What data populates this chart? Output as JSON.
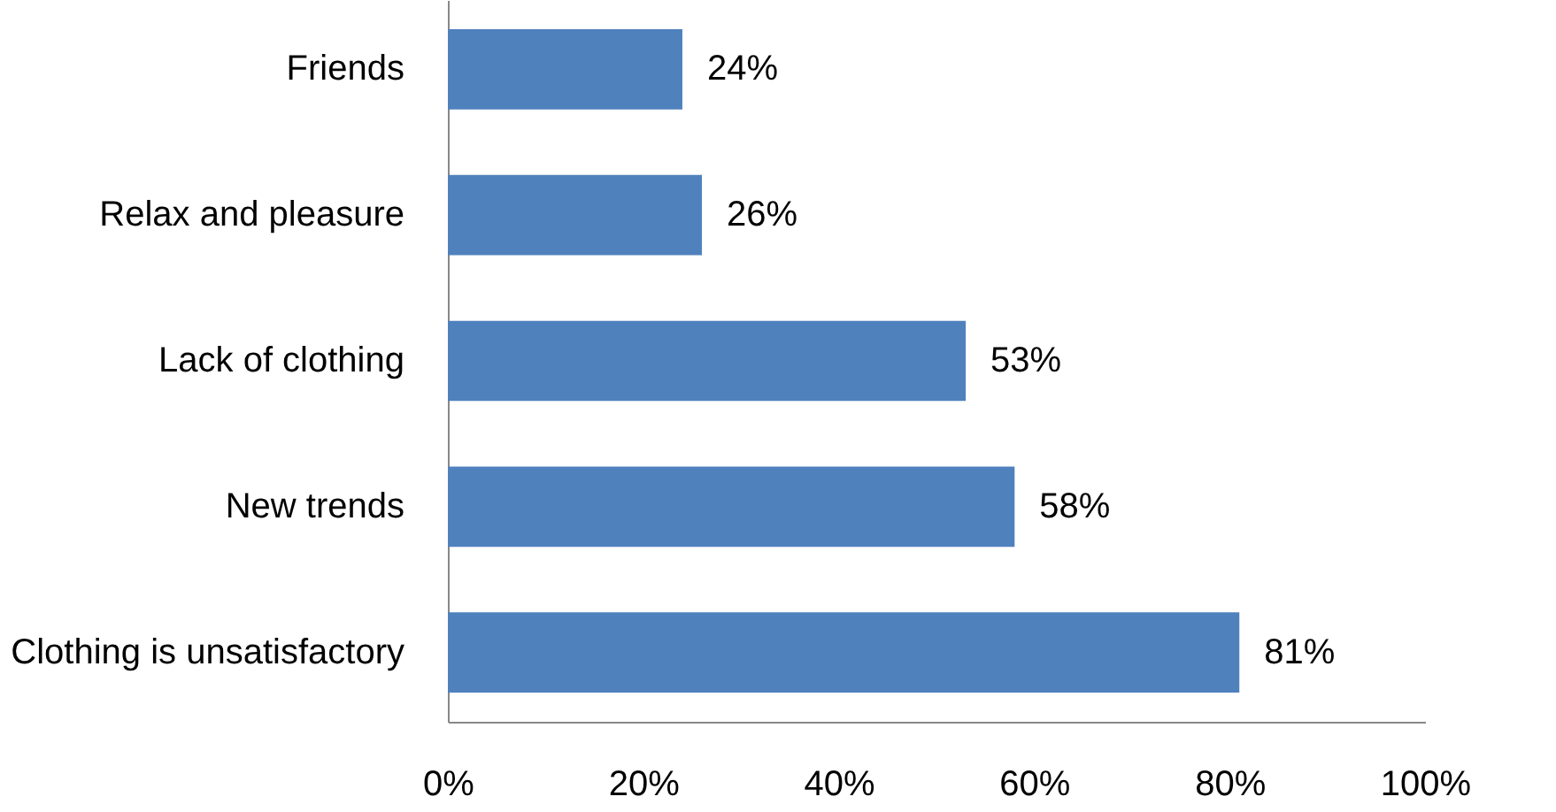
{
  "chart_data": {
    "type": "bar",
    "orientation": "horizontal",
    "categories": [
      "Friends",
      "Relax and pleasure",
      "Lack of clothing",
      "New trends",
      "Clothing is unsatisfactory"
    ],
    "values": [
      24,
      26,
      53,
      58,
      81
    ],
    "value_labels": [
      "24%",
      "26%",
      "53%",
      "58%",
      "81%"
    ],
    "color": "#4f81bd",
    "xlim": [
      0,
      100
    ],
    "xticks": [
      {
        "value": 0,
        "label": "0%"
      },
      {
        "value": 20,
        "label": "20%"
      },
      {
        "value": 40,
        "label": "40%"
      },
      {
        "value": 60,
        "label": "60%"
      },
      {
        "value": 80,
        "label": "80%"
      },
      {
        "value": 100,
        "label": "100%"
      }
    ],
    "grid": false
  }
}
